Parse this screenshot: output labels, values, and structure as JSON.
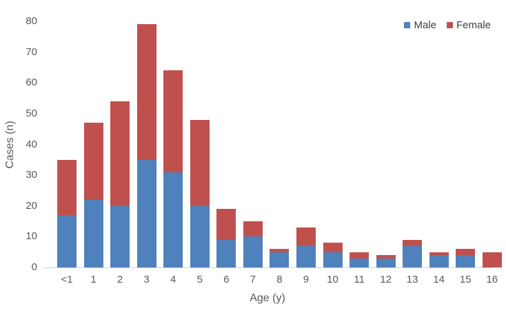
{
  "chart_data": {
    "type": "bar",
    "stacked": true,
    "title": "",
    "xlabel": "Age (y)",
    "ylabel": "Cases (n)",
    "categories": [
      "<1",
      "1",
      "2",
      "3",
      "4",
      "5",
      "6",
      "7",
      "8",
      "9",
      "10",
      "11",
      "12",
      "13",
      "14",
      "15",
      "16"
    ],
    "series": [
      {
        "name": "Male",
        "color": "#4F81BD",
        "values": [
          17,
          22,
          20,
          35,
          31,
          20,
          9,
          10,
          5,
          7,
          5,
          3,
          3,
          7,
          4,
          4,
          0
        ]
      },
      {
        "name": "Female",
        "color": "#C0504D",
        "values": [
          18,
          25,
          34,
          44,
          33,
          28,
          10,
          5,
          1,
          6,
          3,
          2,
          1,
          2,
          1,
          2,
          5
        ]
      }
    ],
    "stack_totals": [
      35,
      47,
      54,
      79,
      64,
      48,
      19,
      15,
      6,
      13,
      8,
      5,
      4,
      9,
      5,
      6,
      5
    ],
    "ylim": [
      0,
      80
    ],
    "yticks": [
      0,
      10,
      20,
      30,
      40,
      50,
      60,
      70,
      80
    ],
    "grid": false,
    "legend_position": "top-right",
    "text_color": "#595959",
    "axis_line_color": "#D6D6D6"
  }
}
